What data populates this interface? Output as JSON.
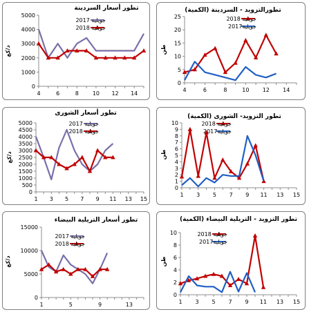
{
  "colors": {
    "s2017": "#7a6ea8",
    "s2018": "#c00000",
    "q2018": "#1f5fc4",
    "q2017": "#4f8ad0",
    "axis": "#8c8c8c"
  },
  "charts": [
    {
      "title": "تطور أسعار السردينة",
      "ylabel": "د/كغ",
      "type": "line",
      "categories": [
        "4",
        "5",
        "6",
        "7",
        "8",
        "9",
        "10",
        "11",
        "12",
        "13",
        "14",
        "15"
      ],
      "xticks": [
        "4",
        "6",
        "8",
        "10",
        "12",
        "14"
      ],
      "ylim": [
        0,
        5000
      ],
      "yticks": [
        "0",
        "1000",
        "2000",
        "3000",
        "4000",
        "5000"
      ],
      "legend": "top-right",
      "series": [
        {
          "name": "جويلية 2017",
          "marker": "none",
          "values": [
            4000,
            2000,
            3000,
            2000,
            3000,
            3400,
            2500,
            2500,
            2500,
            2500,
            2500,
            3700
          ]
        },
        {
          "name": "جويلية 2018",
          "marker": "triangle",
          "values": [
            3000,
            2000,
            2000,
            2500,
            2500,
            2500,
            2000,
            2000,
            2000,
            2000,
            2000,
            2500
          ]
        }
      ]
    },
    {
      "title": "تطورالتزويد - السردينة (الكمية)",
      "ylabel": "طن",
      "type": "line",
      "categories": [
        "4",
        "5",
        "6",
        "7",
        "8",
        "9",
        "10",
        "11",
        "12",
        "13",
        "14",
        "15"
      ],
      "xticks": [
        "4",
        "6",
        "8",
        "10",
        "12",
        "14"
      ],
      "ylim": [
        0,
        25
      ],
      "yticks": [
        "0",
        "5",
        "10",
        "15",
        "20",
        "25"
      ],
      "legend": "top-right",
      "series": [
        {
          "name": "جويلية 2018",
          "marker": "triangle",
          "values": [
            4,
            5,
            10.5,
            13,
            4,
            7.5,
            16,
            9.5,
            18,
            11
          ]
        },
        {
          "name": "جويلية2017",
          "marker": "none",
          "values": [
            1,
            8,
            4,
            3,
            2,
            1,
            6,
            3,
            2,
            3.5
          ]
        }
      ]
    },
    {
      "title": "تطور أسعار الشورى",
      "ylabel": "د/كغ",
      "type": "line",
      "categories": [
        "1",
        "2",
        "3",
        "4",
        "5",
        "6",
        "7",
        "8",
        "9",
        "10",
        "11",
        "12",
        "13",
        "14",
        "15"
      ],
      "xticks": [
        "1",
        "3",
        "5",
        "7",
        "9",
        "11",
        "13",
        "15"
      ],
      "ylim": [
        0,
        5000
      ],
      "yticks": [
        "0",
        "500",
        "1000",
        "1500",
        "2000",
        "2500",
        "3000",
        "3500",
        "4000",
        "4500",
        "5000"
      ],
      "legend": "top-center",
      "series": [
        {
          "name": "جويلية 2017",
          "marker": "none",
          "values": [
            4000,
            2500,
            900,
            3200,
            4500,
            3000,
            2000,
            1500,
            2000,
            3000,
            3500
          ]
        },
        {
          "name": "جويلية 2018",
          "marker": "triangle",
          "values": [
            3000,
            2500,
            2500,
            2000,
            1700,
            2000,
            2500,
            1500,
            3000,
            2500,
            2500
          ]
        }
      ]
    },
    {
      "title": "تطور التزويد- الشورى (الكمية)",
      "ylabel": "طن",
      "type": "line",
      "categories": [
        "1",
        "2",
        "3",
        "4",
        "5",
        "6",
        "7",
        "8",
        "9",
        "10",
        "11",
        "12",
        "13",
        "14",
        "15"
      ],
      "xticks": [
        "1",
        "3",
        "5",
        "7",
        "9",
        "11",
        "13",
        "15"
      ],
      "ylim": [
        0,
        10
      ],
      "yticks": [
        "0",
        "1",
        "2",
        "3",
        "4",
        "5",
        "6",
        "7",
        "8",
        "9",
        "10"
      ],
      "legend": "top-center",
      "series": [
        {
          "name": "جويلية 2018",
          "marker": "triangle",
          "values": [
            1.7,
            9,
            1.8,
            8.5,
            1.5,
            4.3,
            2.5,
            1.5,
            3.7,
            6.5,
            1
          ]
        },
        {
          "name": "جويلية2017",
          "marker": "none",
          "values": [
            0.4,
            1.5,
            0.2,
            1.5,
            0.8,
            2,
            1.8,
            1.8,
            8,
            5,
            1
          ]
        }
      ]
    },
    {
      "title": "تطور أسعار التريلية البيضاء",
      "ylabel": "د/كغ",
      "type": "line",
      "categories": [
        "1",
        "2",
        "3",
        "4",
        "5",
        "6",
        "7",
        "8",
        "9",
        "10",
        "11",
        "12",
        "13",
        "14",
        "15"
      ],
      "xticks": [
        "1",
        "5",
        "9",
        "13"
      ],
      "ylim": [
        0,
        15000
      ],
      "yticks": [
        "0",
        "5000",
        "10000",
        "15000"
      ],
      "legend": "top-center",
      "series": [
        {
          "name": "جويلية 2017",
          "marker": "none",
          "values": [
            10000,
            6500,
            5500,
            9000,
            7000,
            6000,
            5000,
            3000,
            6000,
            9500
          ]
        },
        {
          "name": "جويلية 2018",
          "marker": "triangle",
          "values": [
            6000,
            7000,
            5500,
            6000,
            5000,
            6000,
            6000,
            4500,
            6000,
            6000
          ]
        }
      ]
    },
    {
      "title": "تطور التزويد - التريلية البيضاء (الكمية)",
      "ylabel": "طن",
      "type": "line",
      "categories": [
        "1",
        "2",
        "3",
        "4",
        "5",
        "6",
        "7",
        "8",
        "9",
        "10",
        "11",
        "12",
        "13",
        "14",
        "15"
      ],
      "xticks": [
        "1",
        "3",
        "5",
        "7",
        "9",
        "11",
        "13",
        "15"
      ],
      "ylim": [
        0,
        10
      ],
      "yticks": [
        "0",
        "2",
        "4",
        "6",
        "8",
        "10"
      ],
      "legend": "top-center",
      "series": [
        {
          "name": "جويلية 2018",
          "marker": "triangle",
          "values": [
            1.8,
            2.3,
            2.6,
            3,
            3.3,
            3,
            1.5,
            2.5,
            1.8,
            9.5,
            1.2
          ]
        },
        {
          "name": "جويلية2017",
          "marker": "none",
          "values": [
            0.4,
            3,
            1.5,
            1.3,
            1.3,
            0.4,
            3.7,
            0.5,
            3.5,
            0.4
          ]
        }
      ]
    }
  ]
}
